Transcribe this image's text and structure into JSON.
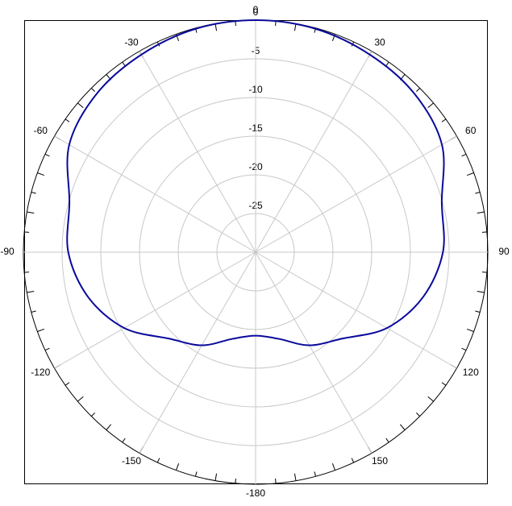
{
  "chart_data": {
    "type": "polar",
    "x": [
      -180,
      -165,
      -150,
      -135,
      -120,
      -105,
      -90,
      -75,
      -60,
      -45,
      -30,
      -15,
      0,
      15,
      30,
      45,
      60,
      75,
      90,
      105,
      120,
      135,
      150,
      165
    ],
    "values": [
      -19.2,
      -18.4,
      -16.1,
      -14.2,
      -10.4,
      -7.6,
      -5.8,
      -5.1,
      -2.2,
      -1.0,
      -0.5,
      -0.1,
      0,
      -0.1,
      -0.5,
      -1.0,
      -2.2,
      -5.1,
      -5.8,
      -7.6,
      -10.4,
      -14.2,
      -16.1,
      -18.4
    ],
    "color": "#0a0a9c",
    "rlim": [
      -30,
      0
    ],
    "rticks": [
      0,
      -5,
      -10,
      -15,
      -20,
      -25
    ],
    "xticks": [
      0,
      30,
      60,
      90,
      120,
      150,
      -180,
      -150,
      -120,
      -90,
      -60,
      -30
    ],
    "grid": true
  }
}
